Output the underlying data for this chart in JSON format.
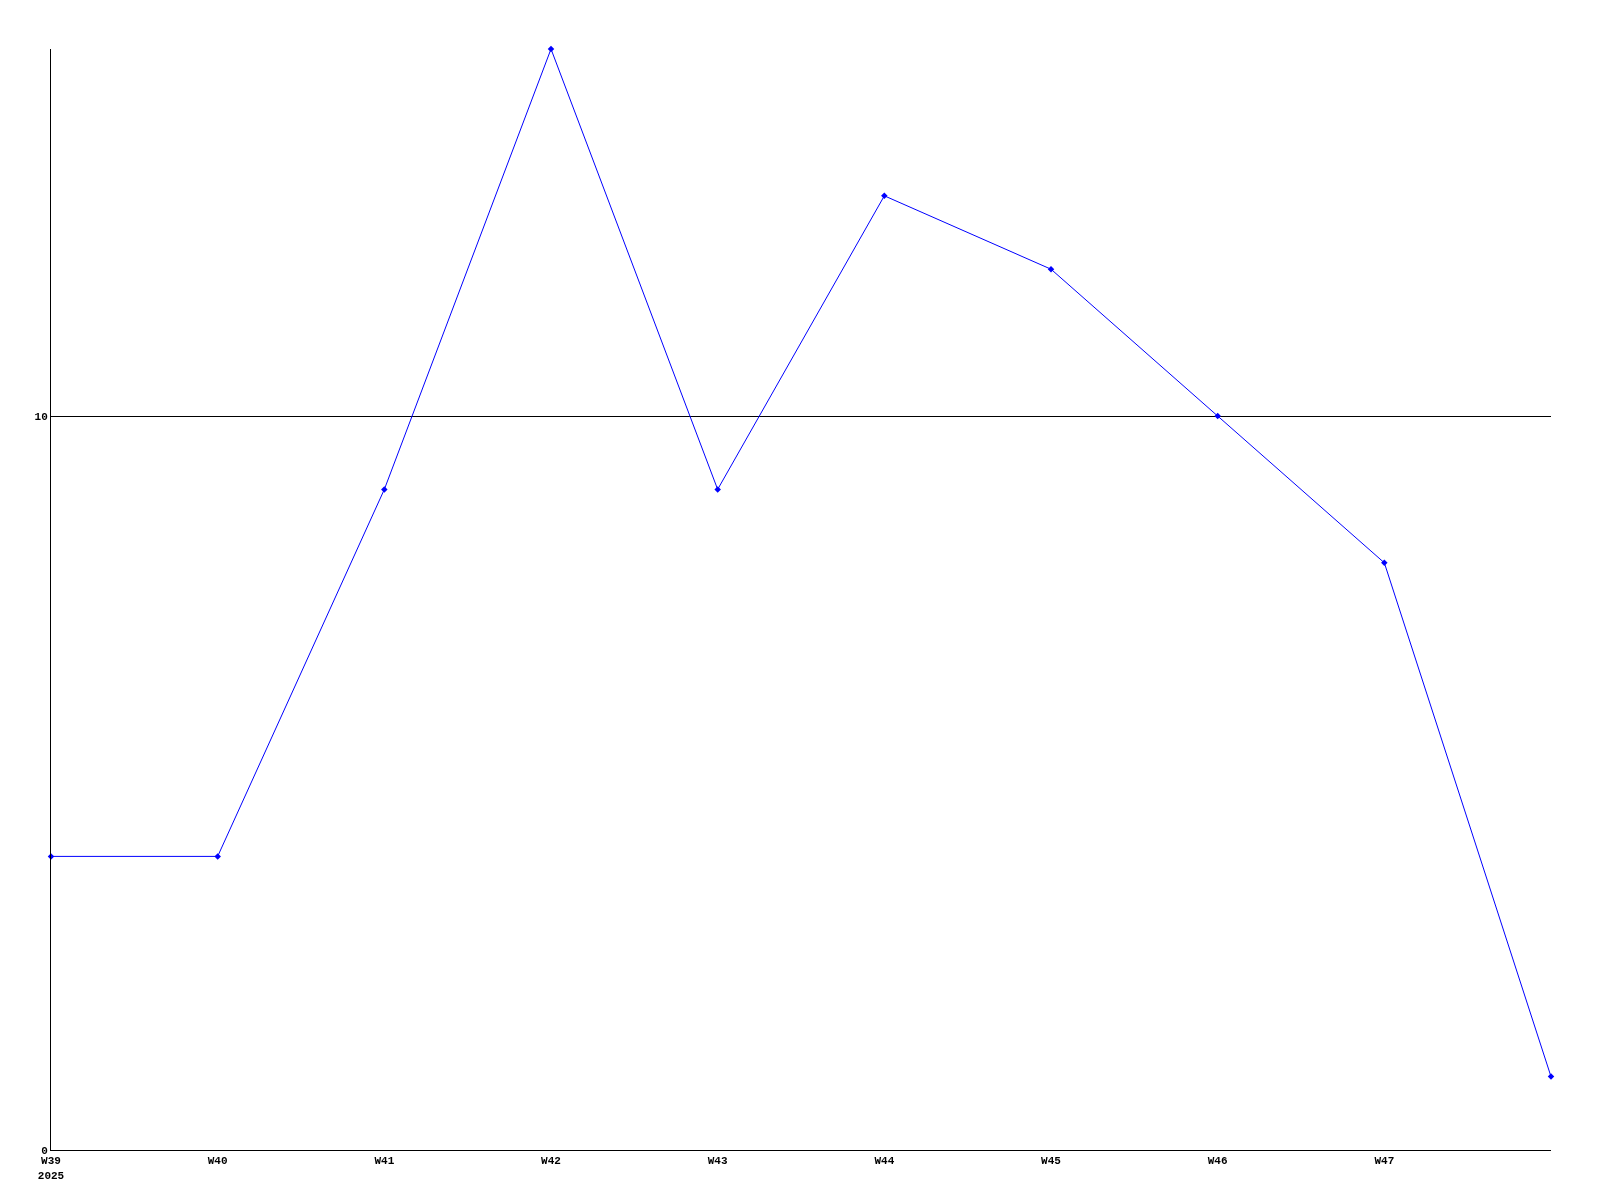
{
  "chart_data": {
    "type": "line",
    "categories": [
      "W39\n2025",
      "W40",
      "W41",
      "W42",
      "W43",
      "W44",
      "W45",
      "W46",
      "W47",
      null
    ],
    "series": [
      {
        "color": "#0000ff",
        "values": [
          4,
          4,
          9,
          15,
          9,
          13,
          12,
          10,
          8,
          1
        ]
      }
    ],
    "ylim": [
      0,
      15
    ],
    "yticks": [
      0,
      10
    ],
    "grid": "y",
    "marker": "diamond",
    "legend": false
  }
}
